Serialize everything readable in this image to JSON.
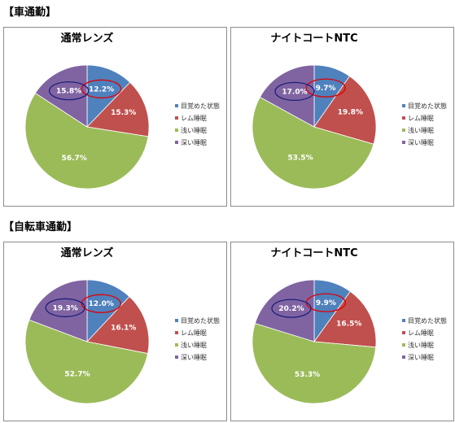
{
  "sections": [
    {
      "title": "【車通勤】"
    },
    {
      "title": "【自転車通勤】"
    }
  ],
  "legend": [
    "目覚めた状態",
    "レム睡眠",
    "浅い睡眠",
    "深い睡眠"
  ],
  "colors": [
    "#4F81BD",
    "#C0504D",
    "#9BBB59",
    "#8064A2"
  ],
  "highlight_color": {
    "red_ellipse": "#e00000",
    "navy_ellipse": "#1f1f7a"
  },
  "chart_data": [
    {
      "type": "pie",
      "title": "通常レンズ",
      "categories": [
        "目覚めた状態",
        "レム睡眠",
        "浅い睡眠",
        "深い睡眠"
      ],
      "values": [
        12.2,
        15.3,
        56.7,
        15.8
      ],
      "labels": [
        "12.2%",
        "15.3%",
        "56.7%",
        "15.8%"
      ],
      "highlighted": [
        0,
        3
      ]
    },
    {
      "type": "pie",
      "title": "ナイトコートNTC",
      "categories": [
        "目覚めた状態",
        "レム睡眠",
        "浅い睡眠",
        "深い睡眠"
      ],
      "values": [
        9.7,
        19.8,
        53.5,
        17.0
      ],
      "labels": [
        "9.7%",
        "19.8%",
        "53.5%",
        "17.0%"
      ],
      "highlighted": [
        0,
        3
      ]
    },
    {
      "type": "pie",
      "title": "通常レンズ",
      "categories": [
        "目覚めた状態",
        "レム睡眠",
        "浅い睡眠",
        "深い睡眠"
      ],
      "values": [
        12.0,
        16.1,
        52.7,
        19.3
      ],
      "labels": [
        "12.0%",
        "16.1%",
        "52.7%",
        "19.3%"
      ],
      "highlighted": [
        0,
        3
      ]
    },
    {
      "type": "pie",
      "title": "ナイトコートNTC",
      "categories": [
        "目覚めた状態",
        "レム睡眠",
        "浅い睡眠",
        "深い睡眠"
      ],
      "values": [
        9.9,
        16.5,
        53.3,
        20.2
      ],
      "labels": [
        "9.9%",
        "16.5%",
        "53.3%",
        "20.2%"
      ],
      "highlighted": [
        0,
        3
      ]
    }
  ]
}
